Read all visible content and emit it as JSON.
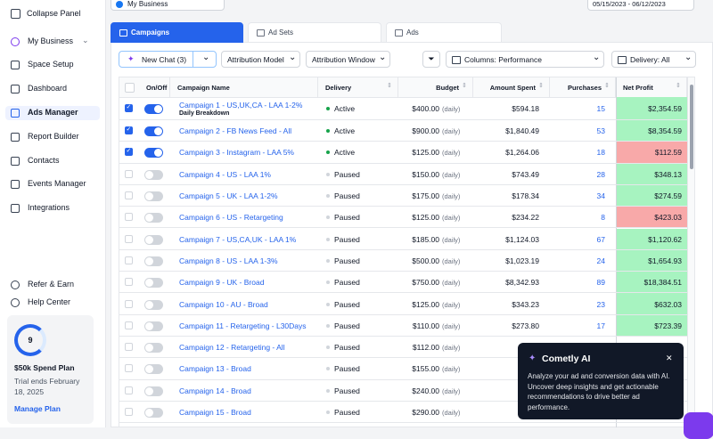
{
  "sidebar": {
    "collapse": "Collapse Panel",
    "nav": [
      "My Business",
      "Space Setup",
      "Dashboard",
      "Ads Manager",
      "Report Builder",
      "Contacts",
      "Events Manager",
      "Integrations"
    ],
    "active": 3,
    "footer_links": [
      "Refer & Earn",
      "Help Center"
    ],
    "plan": {
      "progress": "9",
      "name": "$50k Spend Plan",
      "trial": "Trial ends February 18, 2025",
      "link": "Manage Plan"
    }
  },
  "topbar": {
    "account": "My Business",
    "date_range": "05/15/2023 - 06/12/2023"
  },
  "tabs": {
    "items": [
      "Campaigns",
      "Ad Sets",
      "Ads"
    ],
    "active": 0
  },
  "toolbar": {
    "new_chat": "New Chat (3)",
    "attribution_model": "Attribution Model",
    "attribution_window": "Attribution Window",
    "columns": "Columns: Performance",
    "delivery": "Delivery: All"
  },
  "table": {
    "headers": [
      "On/Off",
      "Campaign Name",
      "Delivery",
      "Budget",
      "Amount Spent",
      "Purchases",
      "Net Profit"
    ],
    "budget_suffix": "(daily)",
    "rows": [
      {
        "name": "Campaign 1 - US,UK,CA - LAA 1-2%",
        "sub": "Daily Breakdown",
        "enabled": true,
        "delivery": "Active",
        "budget": "$400.00",
        "spent": "$594.18",
        "purchases": 15,
        "profit": "$2,354.59",
        "profit_color": "#a7f3c0"
      },
      {
        "name": "Campaign 2 - FB News Feed - All",
        "enabled": true,
        "delivery": "Active",
        "budget": "$900.00",
        "spent": "$1,840.49",
        "purchases": 53,
        "profit": "$8,354.59",
        "profit_color": "#a7f3c0"
      },
      {
        "name": "Campaign 3 - Instagram - LAA 5%",
        "enabled": true,
        "delivery": "Active",
        "budget": "$125.00",
        "spent": "$1,264.06",
        "purchases": 18,
        "profit": "$112.59",
        "profit_color": "#f8a9a9"
      },
      {
        "name": "Campaign 4 - US - LAA 1%",
        "enabled": false,
        "delivery": "Paused",
        "budget": "$150.00",
        "spent": "$743.49",
        "purchases": 28,
        "profit": "$348.13",
        "profit_color": "#a7f3c0"
      },
      {
        "name": "Campaign 5 - UK - LAA 1-2%",
        "enabled": false,
        "delivery": "Paused",
        "budget": "$175.00",
        "spent": "$178.34",
        "purchases": 34,
        "profit": "$274.59",
        "profit_color": "#a7f3c0"
      },
      {
        "name": "Campaign 6 - US - Retargeting",
        "enabled": false,
        "delivery": "Paused",
        "budget": "$125.00",
        "spent": "$234.22",
        "purchases": 8,
        "profit": "$423.03",
        "profit_color": "#f8a9a9"
      },
      {
        "name": "Campaign 7 - US,CA,UK - LAA 1%",
        "enabled": false,
        "delivery": "Paused",
        "budget": "$185.00",
        "spent": "$1,124.03",
        "purchases": 67,
        "profit": "$1,120.62",
        "profit_color": "#a7f3c0"
      },
      {
        "name": "Campaign 8 - US - LAA 1-3%",
        "enabled": false,
        "delivery": "Paused",
        "budget": "$500.00",
        "spent": "$1,023.19",
        "purchases": 24,
        "profit": "$1,654.93",
        "profit_color": "#a7f3c0"
      },
      {
        "name": "Campaign 9 - UK - Broad",
        "enabled": false,
        "delivery": "Paused",
        "budget": "$750.00",
        "spent": "$8,342.93",
        "purchases": 89,
        "profit": "$18,384.51",
        "profit_color": "#a7f3c0"
      },
      {
        "name": "Campaign 10 - AU - Broad",
        "enabled": false,
        "delivery": "Paused",
        "budget": "$125.00",
        "spent": "$343.23",
        "purchases": 23,
        "profit": "$632.03",
        "profit_color": "#a7f3c0"
      },
      {
        "name": "Campaign 11 - Retargeting - L30Days",
        "enabled": false,
        "delivery": "Paused",
        "budget": "$110.00",
        "spent": "$273.80",
        "purchases": 17,
        "profit": "$723.39",
        "profit_color": "#a7f3c0"
      },
      {
        "name": "Campaign 12 - Retargeting - All",
        "enabled": false,
        "delivery": "Paused",
        "budget": "$112.00"
      },
      {
        "name": "Campaign 13 - Broad",
        "enabled": false,
        "delivery": "Paused",
        "budget": "$155.00"
      },
      {
        "name": "Campaign 14 - Broad",
        "enabled": false,
        "delivery": "Paused",
        "budget": "$240.00"
      },
      {
        "name": "Campaign 15 - Broad",
        "enabled": false,
        "delivery": "Paused",
        "budget": "$290.00"
      }
    ]
  },
  "popup": {
    "title": "Cometly AI",
    "body": "Analyze your ad and conversion data with AI. Uncover deep insights and get actionable recommendations to drive better ad performance."
  }
}
